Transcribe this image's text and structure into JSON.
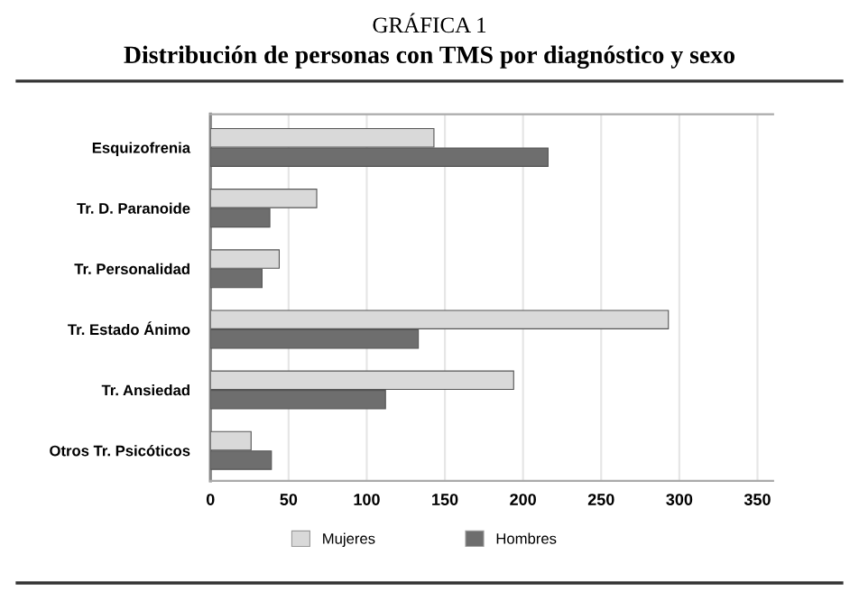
{
  "chart_data": {
    "type": "bar",
    "orientation": "horizontal",
    "title": "GRÁFICA 1",
    "subtitle": "Distribución de personas con TMS por diagnóstico y sexo",
    "categories": [
      "Esquizofrenia",
      "Tr. D. Paranoide",
      "Tr. Personalidad",
      "Tr. Estado Ánimo",
      "Tr. Ansiedad",
      "Otros Tr. Psicóticos"
    ],
    "series": [
      {
        "name": "Mujeres",
        "color": "#d9d9d9",
        "values": [
          143,
          68,
          44,
          293,
          194,
          26
        ]
      },
      {
        "name": "Hombres",
        "color": "#6e6e6e",
        "values": [
          216,
          38,
          33,
          133,
          112,
          39
        ]
      }
    ],
    "xlim": [
      0,
      360
    ],
    "xticks": [
      0,
      50,
      100,
      150,
      200,
      250,
      300,
      350
    ],
    "grid": "x",
    "legend": "bottom"
  }
}
